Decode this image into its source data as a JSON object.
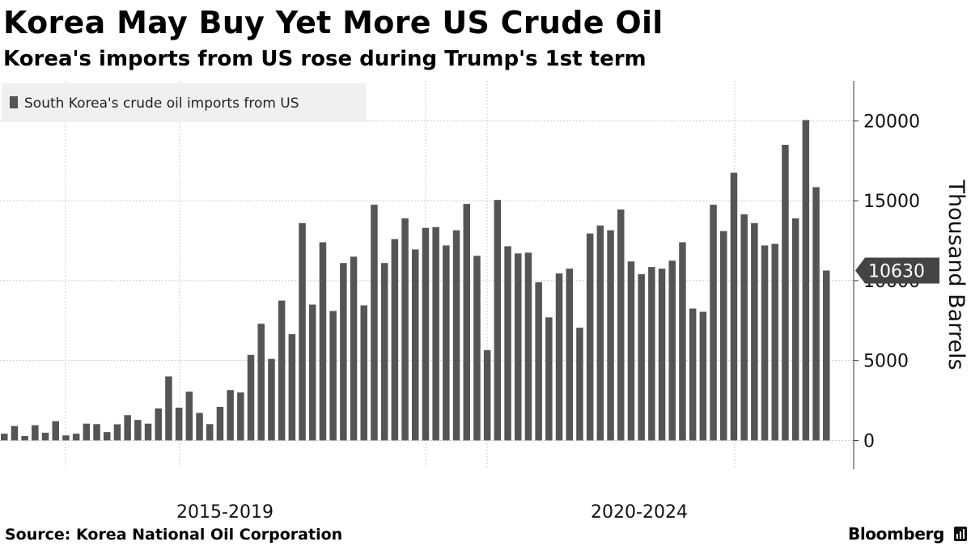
{
  "title": "Korea May Buy Yet More US Crude Oil",
  "subtitle": "Korea's imports from US rose during Trump's 1st term",
  "source": "Source: Korea National Oil Corporation",
  "brand": "Bloomberg",
  "colors": {
    "bar": "#555555",
    "grid": "#cccccc",
    "axis": "#333333",
    "legend_bg": "#f0f0f0"
  },
  "chart_data": {
    "type": "bar",
    "legend": "South Korea's crude oil imports from US",
    "legend_position": "top-left",
    "ylabel": "Thousand Barrels",
    "ylim": [
      -1800,
      22500
    ],
    "yticks": [
      0,
      5000,
      10000,
      15000,
      20000
    ],
    "grid": true,
    "period_labels": [
      "2015-2019",
      "2020-2024"
    ],
    "last_value_label": "10630",
    "values": [
      420,
      900,
      280,
      950,
      480,
      1200,
      310,
      420,
      1050,
      1020,
      520,
      1010,
      1580,
      1280,
      1050,
      2000,
      4000,
      2050,
      3050,
      1720,
      1020,
      2100,
      3150,
      3000,
      5350,
      7300,
      5100,
      8750,
      6650,
      13600,
      8500,
      12400,
      8100,
      11100,
      11500,
      8450,
      14750,
      11100,
      12600,
      13900,
      11950,
      13300,
      13350,
      12200,
      13150,
      14800,
      11550,
      5650,
      15050,
      12150,
      11700,
      11750,
      9900,
      7700,
      10450,
      10750,
      7050,
      12950,
      13450,
      13150,
      14450,
      11200,
      10400,
      10850,
      10750,
      11250,
      12400,
      8250,
      8050,
      14750,
      13100,
      16750,
      14150,
      13600,
      12200,
      12300,
      18500,
      13900,
      20050,
      15850,
      10630
    ]
  }
}
